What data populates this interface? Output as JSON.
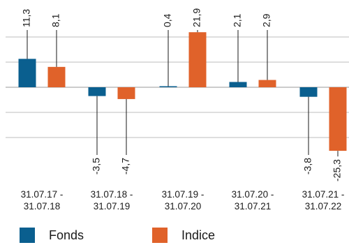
{
  "chart_data": {
    "type": "bar",
    "categories": [
      "31.07.17 -\n31.07.18",
      "31.07.18 -\n31.07.19",
      "31.07.19 -\n31.07.20",
      "31.07.20 -\n31.07.21",
      "31.07.21 -\n31.07.22"
    ],
    "series": [
      {
        "name": "Fonds",
        "values": [
          11.3,
          -3.5,
          0.4,
          2.1,
          -3.8
        ],
        "labels": [
          "11,3",
          "-3,5",
          "0,4",
          "2,1",
          "-3,8"
        ],
        "color": "#0a5f8f"
      },
      {
        "name": "Indice",
        "values": [
          8.1,
          -4.7,
          21.9,
          2.9,
          -25.3
        ],
        "labels": [
          "8,1",
          "-4,7",
          "21,9",
          "2,9",
          "-25,3"
        ],
        "color": "#e0622a"
      }
    ],
    "ylim": [
      -25.3,
      21.9
    ],
    "grid": true,
    "legend_position": "bottom-left",
    "title": "",
    "xlabel": "",
    "ylabel": ""
  }
}
